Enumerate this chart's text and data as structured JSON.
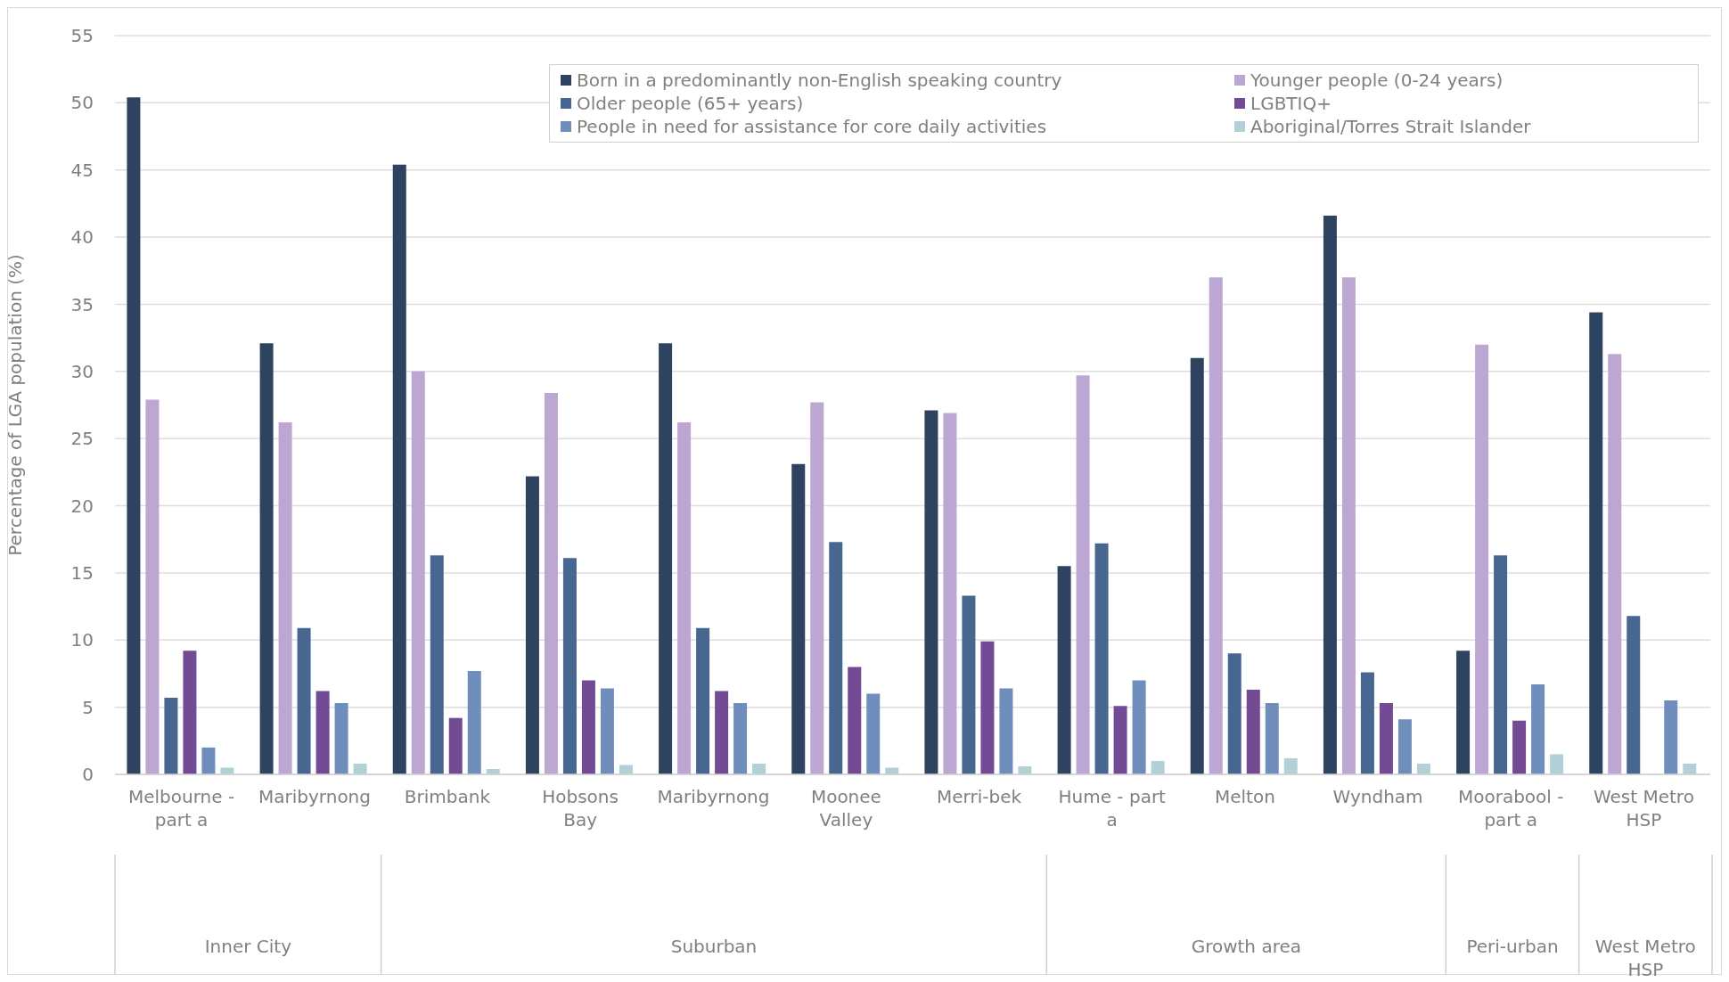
{
  "chart_data": {
    "type": "bar",
    "ylabel": "Percentage of LGA population (%)",
    "categories": [
      "Melbourne - part a",
      "Maribyrnong",
      "Brimbank",
      "Hobsons Bay",
      "Maribyrnong",
      "Moonee Valley",
      "Merri-bek",
      "Hume - part a",
      "Melton",
      "Wyndham",
      "Moorabool - part a",
      "West Metro HSP"
    ],
    "series": [
      {
        "name": "Born in a predominantly non-English speaking country",
        "color": "#2e4360",
        "values": [
          50.4,
          32.1,
          45.4,
          22.2,
          32.1,
          23.1,
          27.1,
          15.5,
          31.0,
          41.6,
          9.2,
          34.4
        ]
      },
      {
        "name": "Younger people (0-24 years)",
        "color": "#bca6d2",
        "values": [
          27.9,
          26.2,
          30.0,
          28.4,
          26.2,
          27.7,
          26.9,
          29.7,
          37.0,
          37.0,
          32.0,
          31.3
        ]
      },
      {
        "name": "Older people (65+ years)",
        "color": "#476791",
        "values": [
          5.7,
          10.9,
          16.3,
          16.1,
          10.9,
          17.3,
          13.3,
          17.2,
          9.0,
          7.6,
          16.3,
          11.8
        ]
      },
      {
        "name": "LGBTIQ+",
        "color": "#734a94",
        "values": [
          9.2,
          6.2,
          4.2,
          7.0,
          6.2,
          8.0,
          9.9,
          5.1,
          6.3,
          5.3,
          4.0,
          null
        ]
      },
      {
        "name": "People in need for assistance for core daily activities",
        "color": "#6f8ebc",
        "values": [
          2.0,
          5.3,
          7.7,
          6.4,
          5.3,
          6.0,
          6.4,
          7.0,
          5.3,
          4.1,
          6.7,
          5.5
        ]
      },
      {
        "name": "Aboriginal/Torres Strait Islander",
        "color": "#b1d1d6",
        "values": [
          0.5,
          0.8,
          0.4,
          0.7,
          0.8,
          0.5,
          0.6,
          1.0,
          1.2,
          0.8,
          1.5,
          0.8
        ]
      }
    ],
    "ylim": [
      0,
      55
    ],
    "yticks": [
      0,
      5,
      10,
      15,
      20,
      25,
      30,
      35,
      40,
      45,
      50,
      55
    ],
    "grid": "y",
    "legend": "top right",
    "annotations": [
      "Inner City",
      "Suburban",
      "Growth area",
      "Peri-urban",
      "West Metro HSP"
    ]
  }
}
